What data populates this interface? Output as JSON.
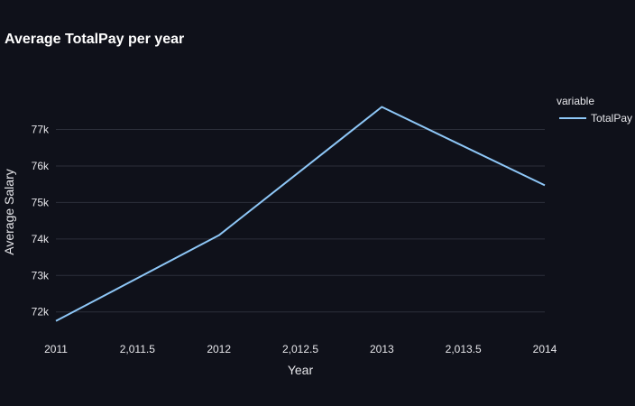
{
  "chart_data": {
    "type": "line",
    "title": "Average TotalPay per year",
    "xlabel": "Year",
    "ylabel": "Average Salary",
    "x": [
      2011,
      2012,
      2013,
      2014
    ],
    "series": [
      {
        "name": "TotalPay",
        "values": [
          71750,
          74100,
          77620,
          75470
        ],
        "color": "#8ec7f7"
      }
    ],
    "xlim": [
      2011,
      2014
    ],
    "ylim": [
      71400,
      78200
    ],
    "x_ticks": [
      2011,
      2011.5,
      2012,
      2012.5,
      2013,
      2013.5,
      2014
    ],
    "x_tick_labels": [
      "2011",
      "2,011.5",
      "2012",
      "2,012.5",
      "2013",
      "2,013.5",
      "2014"
    ],
    "y_ticks": [
      72000,
      73000,
      74000,
      75000,
      76000,
      77000
    ],
    "y_tick_labels": [
      "72k",
      "73k",
      "74k",
      "75k",
      "76k",
      "77k"
    ],
    "grid": true,
    "legend": {
      "title": "variable",
      "placement": "right"
    },
    "colors": {
      "background": "#0f111a",
      "grid": "#2c2f3a",
      "text": "#e6e6ea"
    }
  }
}
